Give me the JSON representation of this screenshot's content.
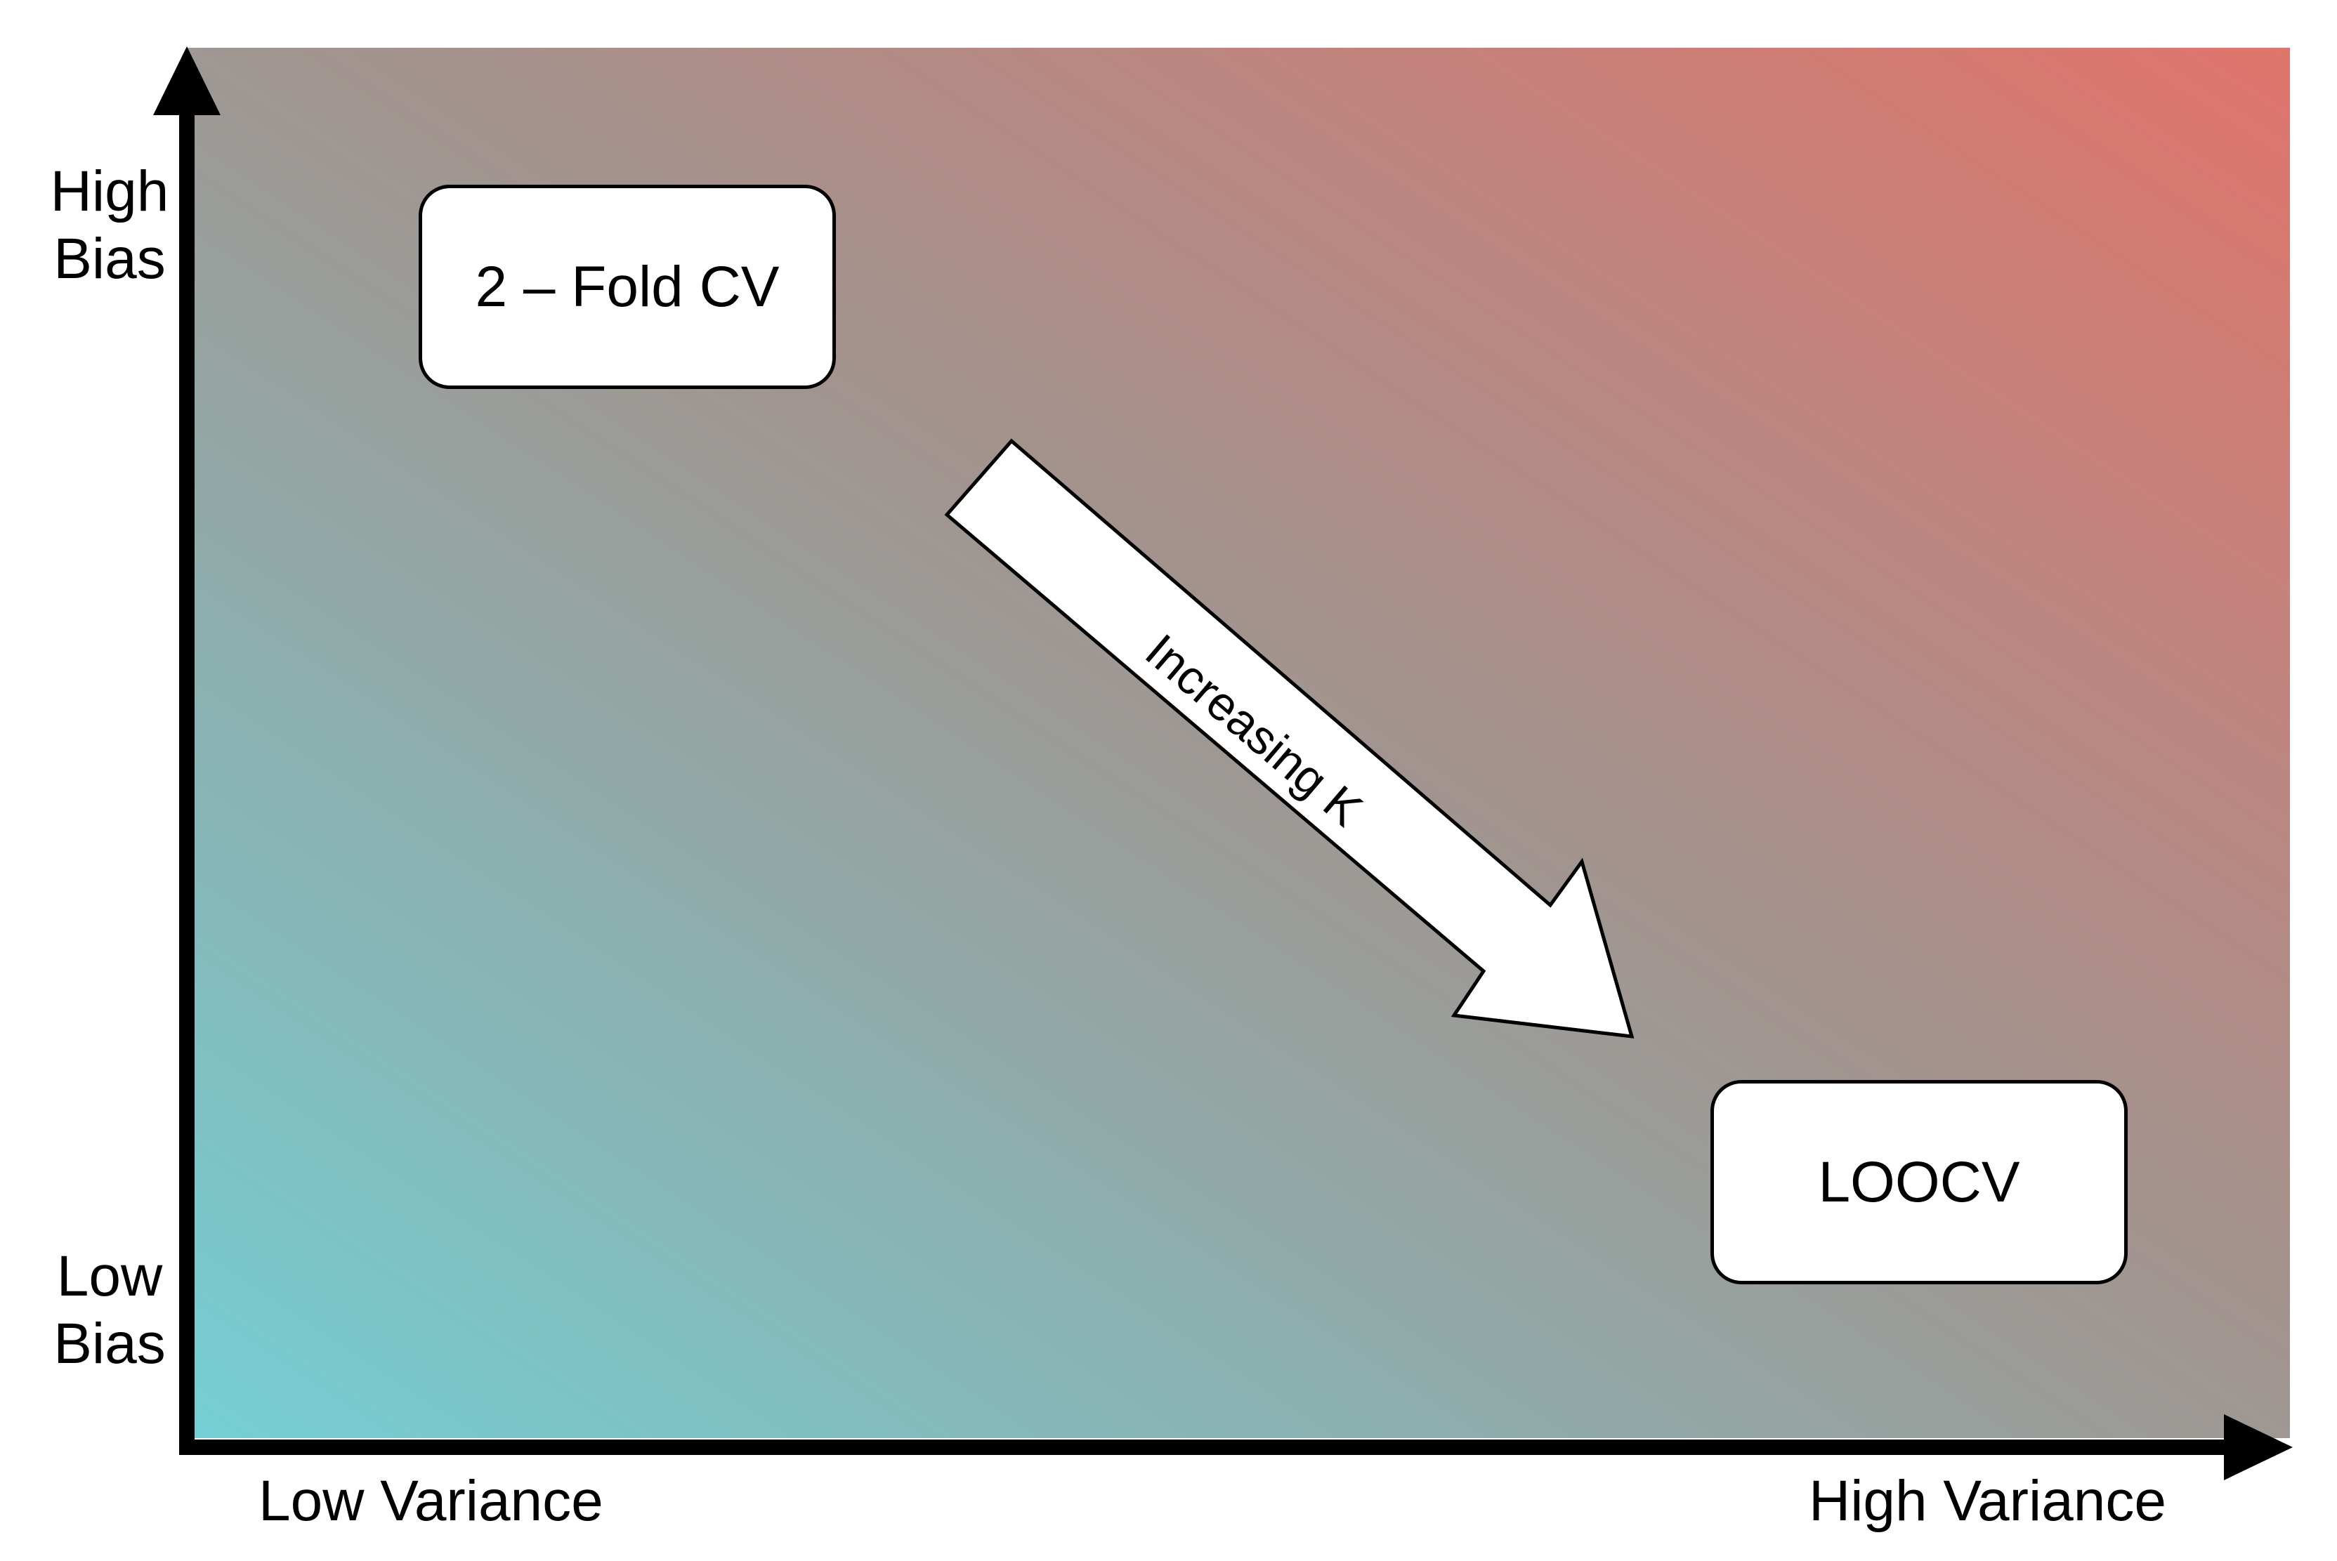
{
  "diagram": {
    "y_axis": {
      "top_label": [
        "High",
        "Bias"
      ],
      "bottom_label": [
        "Low",
        "Bias"
      ]
    },
    "x_axis": {
      "left_label": "Low Variance",
      "right_label": "High Variance"
    },
    "boxes": {
      "top_left": "2 – Fold CV",
      "bottom_right": "LOOCV"
    },
    "arrow_label": "Increasing K",
    "colors": {
      "gradient_low": "#74CFD4",
      "gradient_mid": "#A3928D",
      "gradient_high": "#E0756D",
      "axis": "#000000",
      "box_fill": "#FFFFFF"
    }
  }
}
